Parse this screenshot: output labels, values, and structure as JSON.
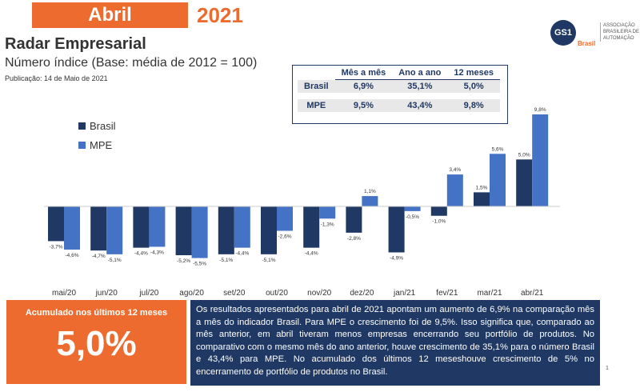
{
  "header": {
    "month": "Abril",
    "year": "2021",
    "title": "Radar Empresarial",
    "subtitle": "Número índice (Base: média de 2012 = 100)",
    "publication": "Publicação: 14 de Maio de 2021"
  },
  "logo": {
    "mark": "GS1",
    "country": "Brasil",
    "org": "ASSOCIAÇÃO BRASILEIRA DE AUTOMAÇÃO"
  },
  "summary_table": {
    "columns": [
      "Mês a mês",
      "Ano a ano",
      "12 meses"
    ],
    "rows": [
      [
        "Brasil",
        "6,9%",
        "35,1%",
        "5,0%"
      ],
      [
        "MPE",
        "9,5%",
        "43,4%",
        "9,8%"
      ]
    ]
  },
  "chart_data": {
    "type": "bar",
    "legend": "upper-left",
    "categories": [
      "mai/20",
      "jun/20",
      "jul/20",
      "ago/20",
      "set/20",
      "out/20",
      "nov/20",
      "dez/20",
      "jan/21",
      "fev/21",
      "mar/21",
      "abr/21"
    ],
    "series": [
      {
        "name": "Brasil",
        "color": "#203864",
        "values": [
          -3.7,
          -4.7,
          -4.4,
          -5.2,
          -5.1,
          -5.1,
          -4.4,
          -2.8,
          -4.9,
          -1.0,
          1.5,
          5.0
        ],
        "value_labels": [
          "-3,7%",
          "-4,7%",
          "-4,4%",
          "-5,2%",
          "-5,1%",
          "-5,1%",
          "-4,4%",
          "-2,8%",
          "-4,9%",
          "-1,0%",
          "1,5%",
          "5,0%"
        ]
      },
      {
        "name": "MPE",
        "color": "#4472c4",
        "values": [
          -4.6,
          -5.1,
          -4.3,
          -5.5,
          -4.4,
          -2.6,
          -1.3,
          1.1,
          -0.5,
          3.4,
          5.6,
          9.8
        ],
        "value_labels": [
          "-4,6%",
          "-5,1%",
          "-4,3%",
          "-5,5%",
          "-4,4%",
          "-2,6%",
          "-1,3%",
          "1,1%",
          "-0,5%",
          "3,4%",
          "5,6%",
          "9,8%"
        ]
      }
    ]
  },
  "highlight": {
    "label": "Acumulado nos últimos 12 meses",
    "value": "5,0%"
  },
  "text": "Os resultados apresentados para abril de 2021 apontam um aumento de 6,9% na comparação mês a mês do indicador Brasil. Para MPE o crescimento foi de 9,5%. Isso significa que, comparado ao mês anterior, em abril tiveram menos empresas encerrando seu portfólio de produtos. No comparativo com o mesmo mês do ano anterior, houve crescimento de 35,1% para o número Brasil e 43,4% para MPE. No acumulado dos últimos 12 meseshouve crescimento de 5% no encerramento de portfólio de produtos no Brasil.",
  "page_number": "1"
}
